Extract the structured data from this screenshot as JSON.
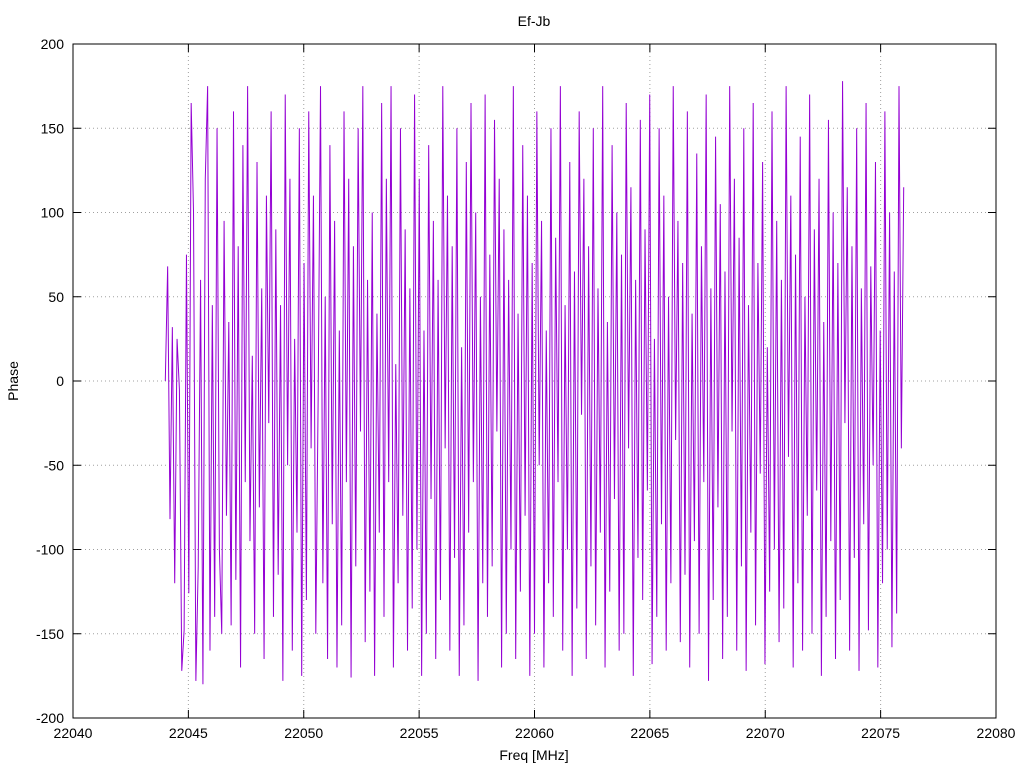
{
  "chart_data": {
    "type": "line",
    "title": "Ef-Jb",
    "xlabel": "Freq [MHz]",
    "ylabel": "Phase",
    "xlim": [
      22040,
      22080
    ],
    "ylim": [
      -200,
      200
    ],
    "xticks": [
      22040,
      22045,
      22050,
      22055,
      22060,
      22065,
      22070,
      22075,
      22080
    ],
    "yticks": [
      -200,
      -150,
      -100,
      -50,
      0,
      50,
      100,
      150,
      200
    ],
    "grid": true,
    "series": [
      {
        "color": "#9400d3",
        "x_start": 22044.0,
        "x_end": 22076.0,
        "y": [
          0,
          68,
          -82,
          32,
          -120,
          25,
          -5,
          -172,
          -148,
          75,
          -126,
          165,
          100,
          -178,
          -110,
          60,
          -180,
          120,
          175,
          -160,
          45,
          -140,
          150,
          -100,
          -150,
          95,
          -80,
          35,
          -145,
          160,
          -118,
          80,
          -170,
          140,
          -60,
          175,
          -95,
          15,
          -150,
          130,
          -75,
          55,
          -165,
          110,
          -25,
          160,
          -140,
          90,
          -115,
          45,
          -178,
          170,
          -50,
          120,
          -160,
          25,
          -90,
          150,
          -175,
          70,
          -130,
          160,
          -40,
          110,
          -150,
          -10,
          175,
          -120,
          50,
          -165,
          140,
          -85,
          95,
          -170,
          30,
          -145,
          160,
          -60,
          120,
          -176,
          80,
          -110,
          150,
          -30,
          175,
          -155,
          60,
          -125,
          100,
          -175,
          40,
          -90,
          165,
          -140,
          120,
          -60,
          175,
          -170,
          10,
          -120,
          150,
          -80,
          90,
          -160,
          55,
          -135,
          170,
          -100,
          120,
          -175,
          30,
          -150,
          140,
          -70,
          95,
          -165,
          60,
          -130,
          175,
          -40,
          110,
          -160,
          80,
          -105,
          150,
          -175,
          20,
          -145,
          130,
          -90,
          165,
          -60,
          100,
          -178,
          50,
          -120,
          170,
          -140,
          75,
          -110,
          155,
          -30,
          120,
          -170,
          90,
          -150,
          60,
          -100,
          175,
          -165,
          40,
          -125,
          140,
          -80,
          110,
          -175,
          70,
          -150,
          160,
          -50,
          95,
          -170,
          30,
          -120,
          150,
          -140,
          85,
          -60,
          175,
          -160,
          45,
          -100,
          130,
          -175,
          65,
          -135,
          160,
          -20,
          120,
          -165,
          80,
          -110,
          150,
          -145,
          55,
          -90,
          175,
          -170,
          35,
          -125,
          140,
          -70,
          100,
          -160,
          75,
          -150,
          165,
          -40,
          115,
          -175,
          60,
          -105,
          155,
          -130,
          90,
          -65,
          170,
          -168,
          25,
          -140,
          150,
          -85,
          110,
          -160,
          50,
          -120,
          175,
          -35,
          95,
          -155,
          70,
          -115,
          160,
          -170,
          40,
          -95,
          135,
          -150,
          80,
          -60,
          170,
          -178,
          55,
          -130,
          145,
          -75,
          105,
          -165,
          65,
          -140,
          175,
          -30,
          120,
          -160,
          85,
          -110,
          150,
          -172,
          45,
          -90,
          165,
          -145,
          70,
          -55,
          130,
          -168,
          20,
          -125,
          160,
          -100,
          95,
          -155,
          60,
          -135,
          175,
          -45,
          110,
          -170,
          75,
          -120,
          145,
          -160,
          50,
          -80,
          170,
          -150,
          90,
          -65,
          120,
          -175,
          35,
          -140,
          155,
          -95,
          100,
          -165,
          70,
          -130,
          178,
          -25,
          115,
          -160,
          80,
          -105,
          150,
          -172,
          55,
          -85,
          165,
          -148,
          68,
          -50,
          130,
          -170,
          30,
          -120,
          160,
          -100,
          100,
          -158,
          65,
          -138,
          175,
          -40,
          115
        ]
      }
    ]
  }
}
